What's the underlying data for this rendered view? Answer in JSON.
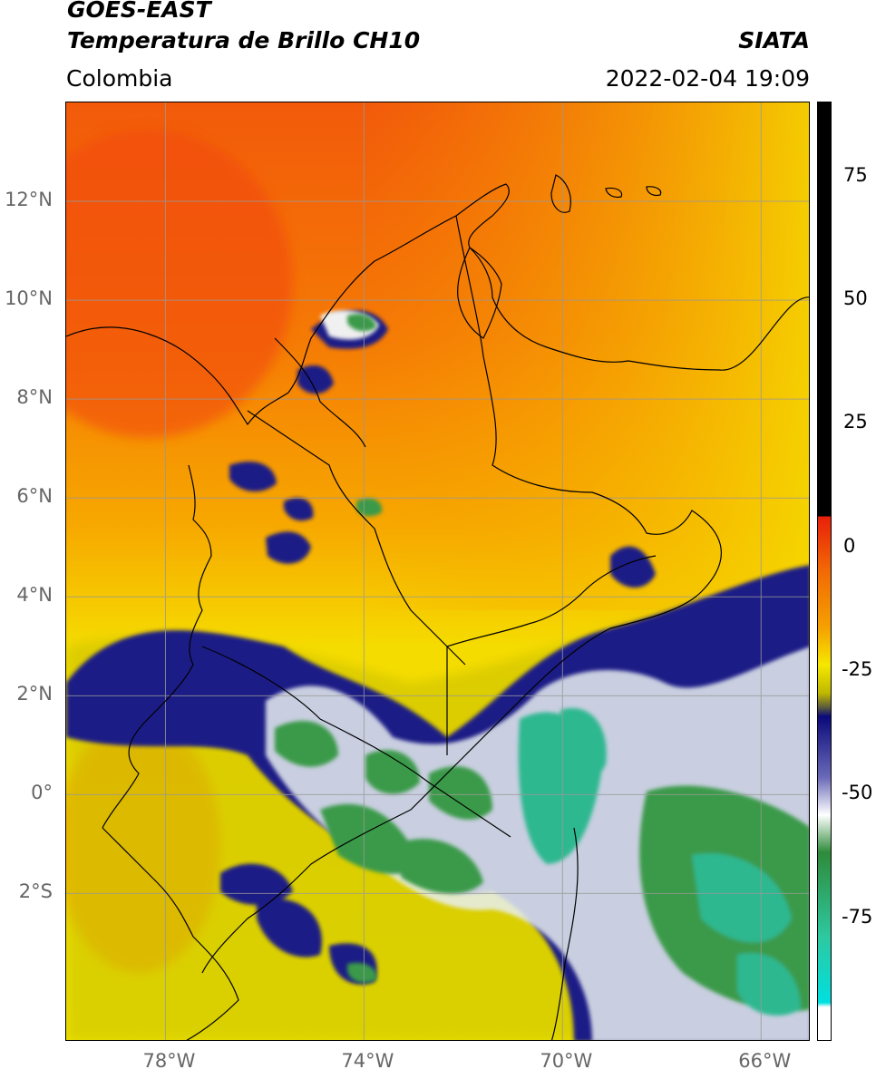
{
  "header": {
    "satellite": "GOES-EAST",
    "product": "Temperatura de Brillo CH10",
    "agency": "SIATA",
    "region": "Colombia",
    "timestamp": "2022-02-04 19:09"
  },
  "map": {
    "lat_labels": [
      {
        "lat": 12,
        "label": "12°N"
      },
      {
        "lat": 10,
        "label": "10°N"
      },
      {
        "lat": 8,
        "label": "8°N"
      },
      {
        "lat": 6,
        "label": "6°N"
      },
      {
        "lat": 4,
        "label": "4°N"
      },
      {
        "lat": 2,
        "label": "2°N"
      },
      {
        "lat": 0,
        "label": "0°"
      },
      {
        "lat": -2,
        "label": "2°S"
      }
    ],
    "lon_labels": [
      {
        "lon": -78,
        "label": "78°W"
      },
      {
        "lon": -74,
        "label": "74°W"
      },
      {
        "lon": -70,
        "label": "70°W"
      },
      {
        "lon": -66,
        "label": "66°W"
      }
    ],
    "lon_range": [
      -80,
      -65
    ],
    "lat_range": [
      -5,
      14
    ]
  },
  "colorbar": {
    "range": [
      -100,
      90
    ],
    "ticks": [
      {
        "value": 75,
        "label": "75"
      },
      {
        "value": 50,
        "label": "50"
      },
      {
        "value": 25,
        "label": "25"
      },
      {
        "value": 0,
        "label": "0"
      },
      {
        "value": -25,
        "label": "-25"
      },
      {
        "value": -50,
        "label": "-50"
      },
      {
        "value": -75,
        "label": "-75"
      }
    ],
    "colors": {
      "black": "#000000",
      "red": "#e8200a",
      "orange": "#f28a00",
      "yellow": "#f5e800",
      "olive": "#bfb800",
      "gray": "#5c5c3c",
      "navy": "#0a0a7a",
      "white": "#ffffff",
      "green": "#2e8b3a",
      "teal": "#2ec8a0",
      "cyan": "#00e0e0"
    }
  }
}
